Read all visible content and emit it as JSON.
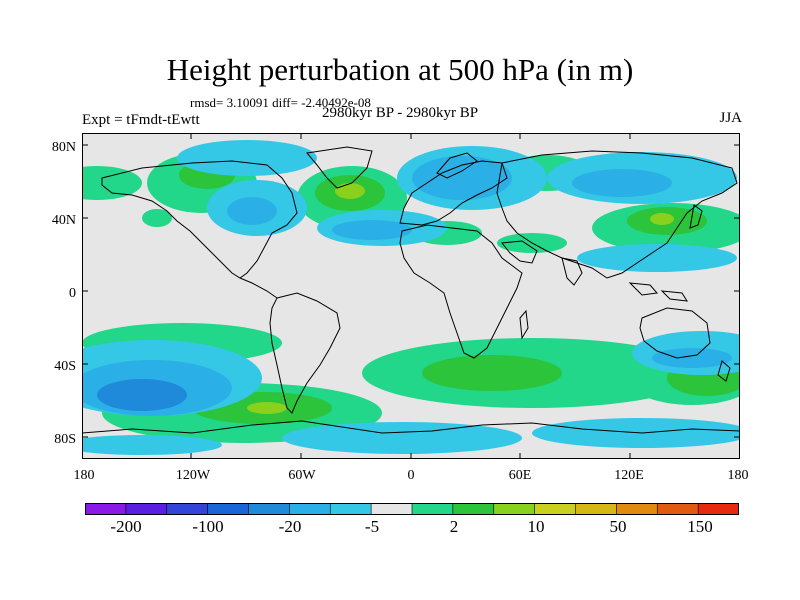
{
  "title": "Height perturbation at 500 hPa (in m)",
  "stats_text": "rmsd= 3.10091 diff= -2.40492e-08",
  "left_label": "Expt = tFmdt-tEwtt",
  "center_label": "2980kyr BP - 2980kyr BP",
  "right_label": "JJA",
  "lat_labels": [
    "80N",
    "40N",
    "0",
    "40S",
    "80S"
  ],
  "lon_labels": [
    "180",
    "120W",
    "60W",
    "0",
    "60E",
    "120E",
    "180"
  ],
  "colorbar": {
    "colors": [
      "#8a1be6",
      "#5a1fe0",
      "#3344d9",
      "#1a66d9",
      "#1e8ad9",
      "#2ab0e6",
      "#34c8e6",
      "#e6e6e6",
      "#22d68a",
      "#2bc43a",
      "#8ad11e",
      "#c8d11e",
      "#d6b814",
      "#e08a10",
      "#e05a10",
      "#e62a10"
    ],
    "labels": [
      "-200",
      "-100",
      "-20",
      "-5",
      "2",
      "10",
      "50",
      "150"
    ]
  },
  "chart_data": {
    "type": "heatmap",
    "title": "Height perturbation at 500 hPa (in m)",
    "subtitle": "rmsd= 3.10091 diff= -2.40492e-08",
    "x_range": [
      -180,
      180
    ],
    "y_range": [
      -90,
      90
    ],
    "x_ticks": [
      "180",
      "120W",
      "60W",
      "0",
      "60E",
      "120E",
      "180"
    ],
    "y_ticks": [
      "80N",
      "40N",
      "0",
      "40S",
      "80S"
    ],
    "legend": "bottom",
    "levels": [
      "-200",
      "-100",
      "-20",
      "-5",
      "2",
      "10",
      "50",
      "150"
    ]
  }
}
